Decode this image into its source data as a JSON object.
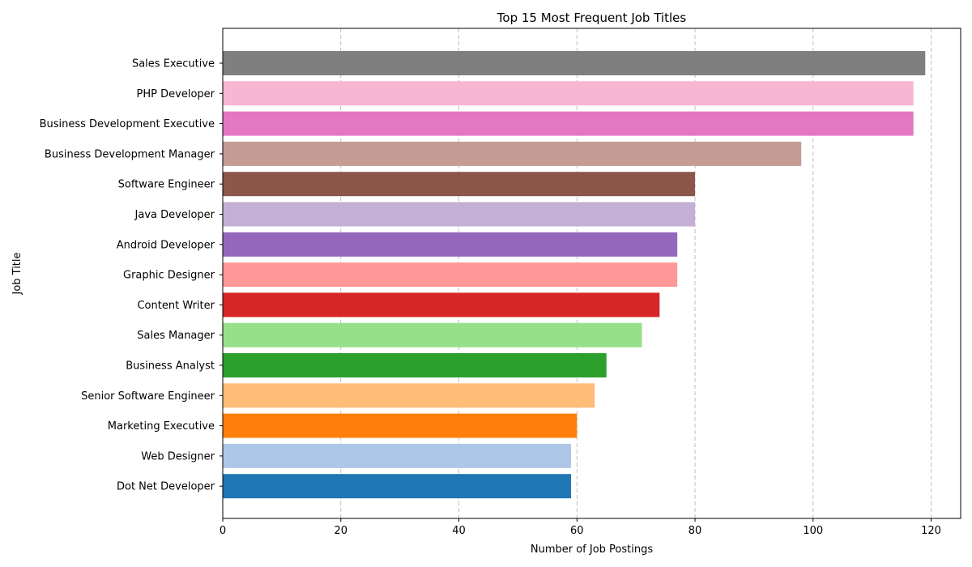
{
  "chart_data": {
    "type": "bar",
    "orientation": "horizontal",
    "title": "Top 15 Most Frequent Job Titles",
    "xlabel": "Number of Job Postings",
    "ylabel": "Job Title",
    "xlim": [
      0,
      125
    ],
    "xticks": [
      0,
      20,
      40,
      60,
      80,
      100,
      120
    ],
    "grid": "x-dashed",
    "categories": [
      "Sales Executive",
      "PHP Developer",
      "Business Development Executive",
      "Business Development Manager",
      "Software Engineer",
      "Java Developer",
      "Android Developer",
      "Graphic Designer",
      "Content Writer",
      "Sales Manager",
      "Business Analyst",
      "Senior Software Engineer",
      "Marketing Executive",
      "Web Designer",
      "Dot Net Developer"
    ],
    "values": [
      119,
      117,
      117,
      98,
      80,
      80,
      77,
      77,
      74,
      71,
      65,
      63,
      60,
      59,
      59
    ],
    "colors": [
      "#7f7f7f",
      "#f7b6d2",
      "#e377c2",
      "#c49c94",
      "#8c564b",
      "#c5b0d5",
      "#9467bd",
      "#ff9896",
      "#d62728",
      "#98df8a",
      "#2ca02c",
      "#ffbb78",
      "#ff7f0e",
      "#aec7e8",
      "#1f77b4"
    ]
  }
}
